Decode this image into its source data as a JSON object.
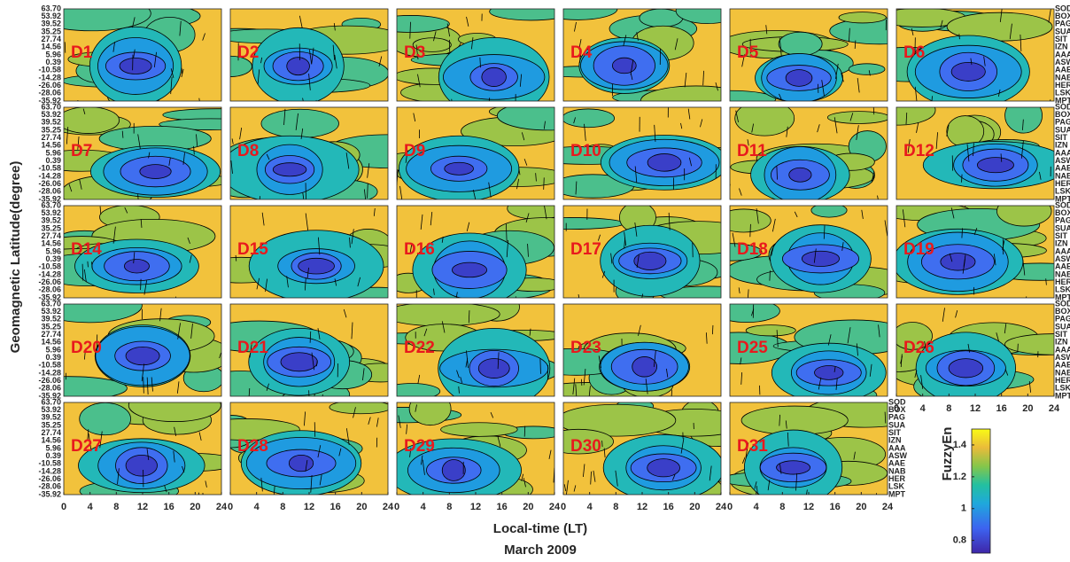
{
  "figure": {
    "y_axis_label": "Geomagnetic Latitude(degree)",
    "x_axis_label": "Local-time (LT)",
    "subtitle": "March 2009",
    "lat_labels": [
      "63.70",
      "53.92",
      "39.52",
      "35.25",
      "27.74",
      "14.56",
      "5.96",
      "0.39",
      "-10.58",
      "-14.28",
      "-26.06",
      "-28.06",
      "-35.92"
    ],
    "stations": [
      "SOD",
      "BOX",
      "PAG",
      "SUA",
      "SIT",
      "IZN",
      "AAA",
      "ASW",
      "AAE",
      "NAB",
      "HER",
      "LSK",
      "MPT"
    ],
    "xlim": [
      0,
      24
    ],
    "xticks": [
      0,
      4,
      8,
      12,
      16,
      20,
      24
    ],
    "panels": [
      {
        "label": "D1"
      },
      {
        "label": "D2"
      },
      {
        "label": "D3"
      },
      {
        "label": "D4"
      },
      {
        "label": "D5"
      },
      {
        "label": "D6"
      },
      {
        "label": "D7"
      },
      {
        "label": "D8"
      },
      {
        "label": "D9"
      },
      {
        "label": "D10"
      },
      {
        "label": "D11"
      },
      {
        "label": "D12"
      },
      {
        "label": "D14"
      },
      {
        "label": "D15"
      },
      {
        "label": "D16"
      },
      {
        "label": "D17"
      },
      {
        "label": "D18"
      },
      {
        "label": "D19"
      },
      {
        "label": "D20"
      },
      {
        "label": "D21"
      },
      {
        "label": "D22"
      },
      {
        "label": "D23"
      },
      {
        "label": "D25"
      },
      {
        "label": "D26"
      },
      {
        "label": "D27"
      },
      {
        "label": "D28"
      },
      {
        "label": "D29"
      },
      {
        "label": "D30"
      },
      {
        "label": "D31"
      }
    ],
    "colorbar": {
      "label": "FuzzyEn",
      "lim": [
        0.72,
        1.5
      ],
      "ticks": [
        0.8,
        1,
        1.2,
        1.4
      ]
    }
  }
}
